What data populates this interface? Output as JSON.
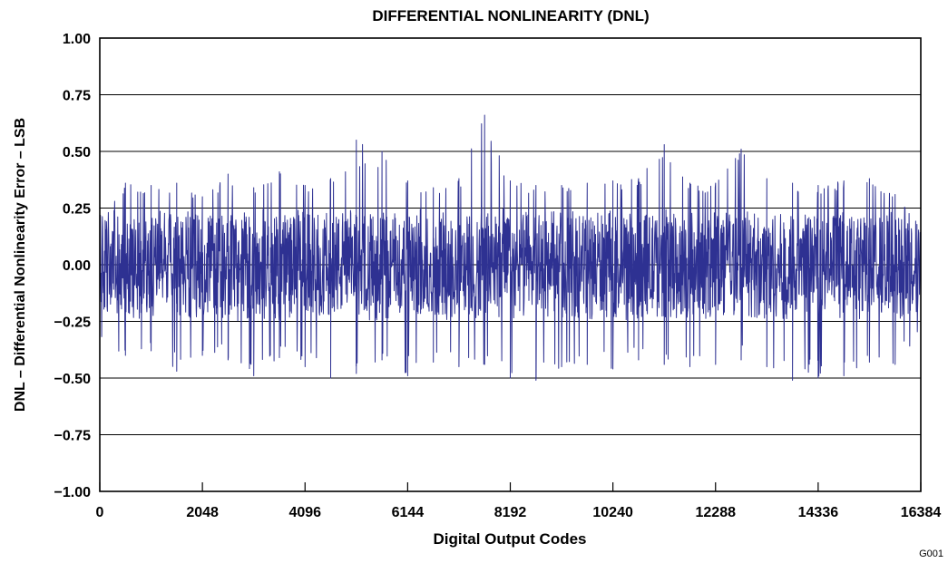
{
  "figure_code": "G001",
  "chart_data": {
    "type": "line",
    "title": "DIFFERENTIAL NONLINEARITY (DNL)",
    "xlabel": "Digital Output Codes",
    "ylabel": "DNL – Differential Nonlinearity Error – LSB",
    "xlim": [
      0,
      16384
    ],
    "ylim": [
      -1.0,
      1.0
    ],
    "x_ticks": [
      0,
      2048,
      4096,
      6144,
      8192,
      10240,
      12288,
      14336,
      16384
    ],
    "x_tick_labels": [
      "0",
      "2048",
      "4096",
      "6144",
      "8192",
      "10240",
      "12288",
      "14336",
      "16384"
    ],
    "y_ticks": [
      1.0,
      0.75,
      0.5,
      0.25,
      0.0,
      -0.25,
      -0.5,
      -0.75,
      -1.0
    ],
    "y_tick_labels": [
      "1.00",
      "0.75",
      "0.50",
      "0.25",
      "0.00",
      "−0.25",
      "−0.50",
      "−0.75",
      "−1.00"
    ],
    "grid": "horizontal",
    "line_color": "#2e3192",
    "series": [
      {
        "x": [
          0,
          512,
          1024,
          1536,
          2048,
          2560,
          3072,
          3584,
          4096,
          4608,
          5120,
          5632,
          6144,
          6656,
          7168,
          7680,
          8192,
          8704,
          9216,
          9728,
          10240,
          10752,
          11264,
          11776,
          12288,
          12800,
          13312,
          13824,
          14336,
          14848,
          15360,
          15872,
          16384
        ],
        "envelope_max": [
          0.18,
          0.36,
          0.35,
          0.36,
          0.3,
          0.4,
          0.34,
          0.41,
          0.35,
          0.38,
          0.55,
          0.5,
          0.37,
          0.34,
          0.38,
          0.66,
          0.37,
          0.35,
          0.35,
          0.36,
          0.37,
          0.38,
          0.53,
          0.36,
          0.36,
          0.51,
          0.38,
          0.36,
          0.35,
          0.37,
          0.38,
          0.31,
          0.16
        ],
        "envelope_min": [
          -0.35,
          -0.4,
          -0.38,
          -0.47,
          -0.4,
          -0.42,
          -0.49,
          -0.41,
          -0.45,
          -0.5,
          -0.48,
          -0.42,
          -0.49,
          -0.43,
          -0.45,
          -0.44,
          -0.5,
          -0.51,
          -0.45,
          -0.44,
          -0.46,
          -0.42,
          -0.44,
          -0.45,
          -0.44,
          -0.42,
          -0.45,
          -0.51,
          -0.5,
          -0.49,
          -0.43,
          -0.44,
          -0.3
        ],
        "typical_band": [
          -0.25,
          0.25
        ]
      }
    ]
  }
}
